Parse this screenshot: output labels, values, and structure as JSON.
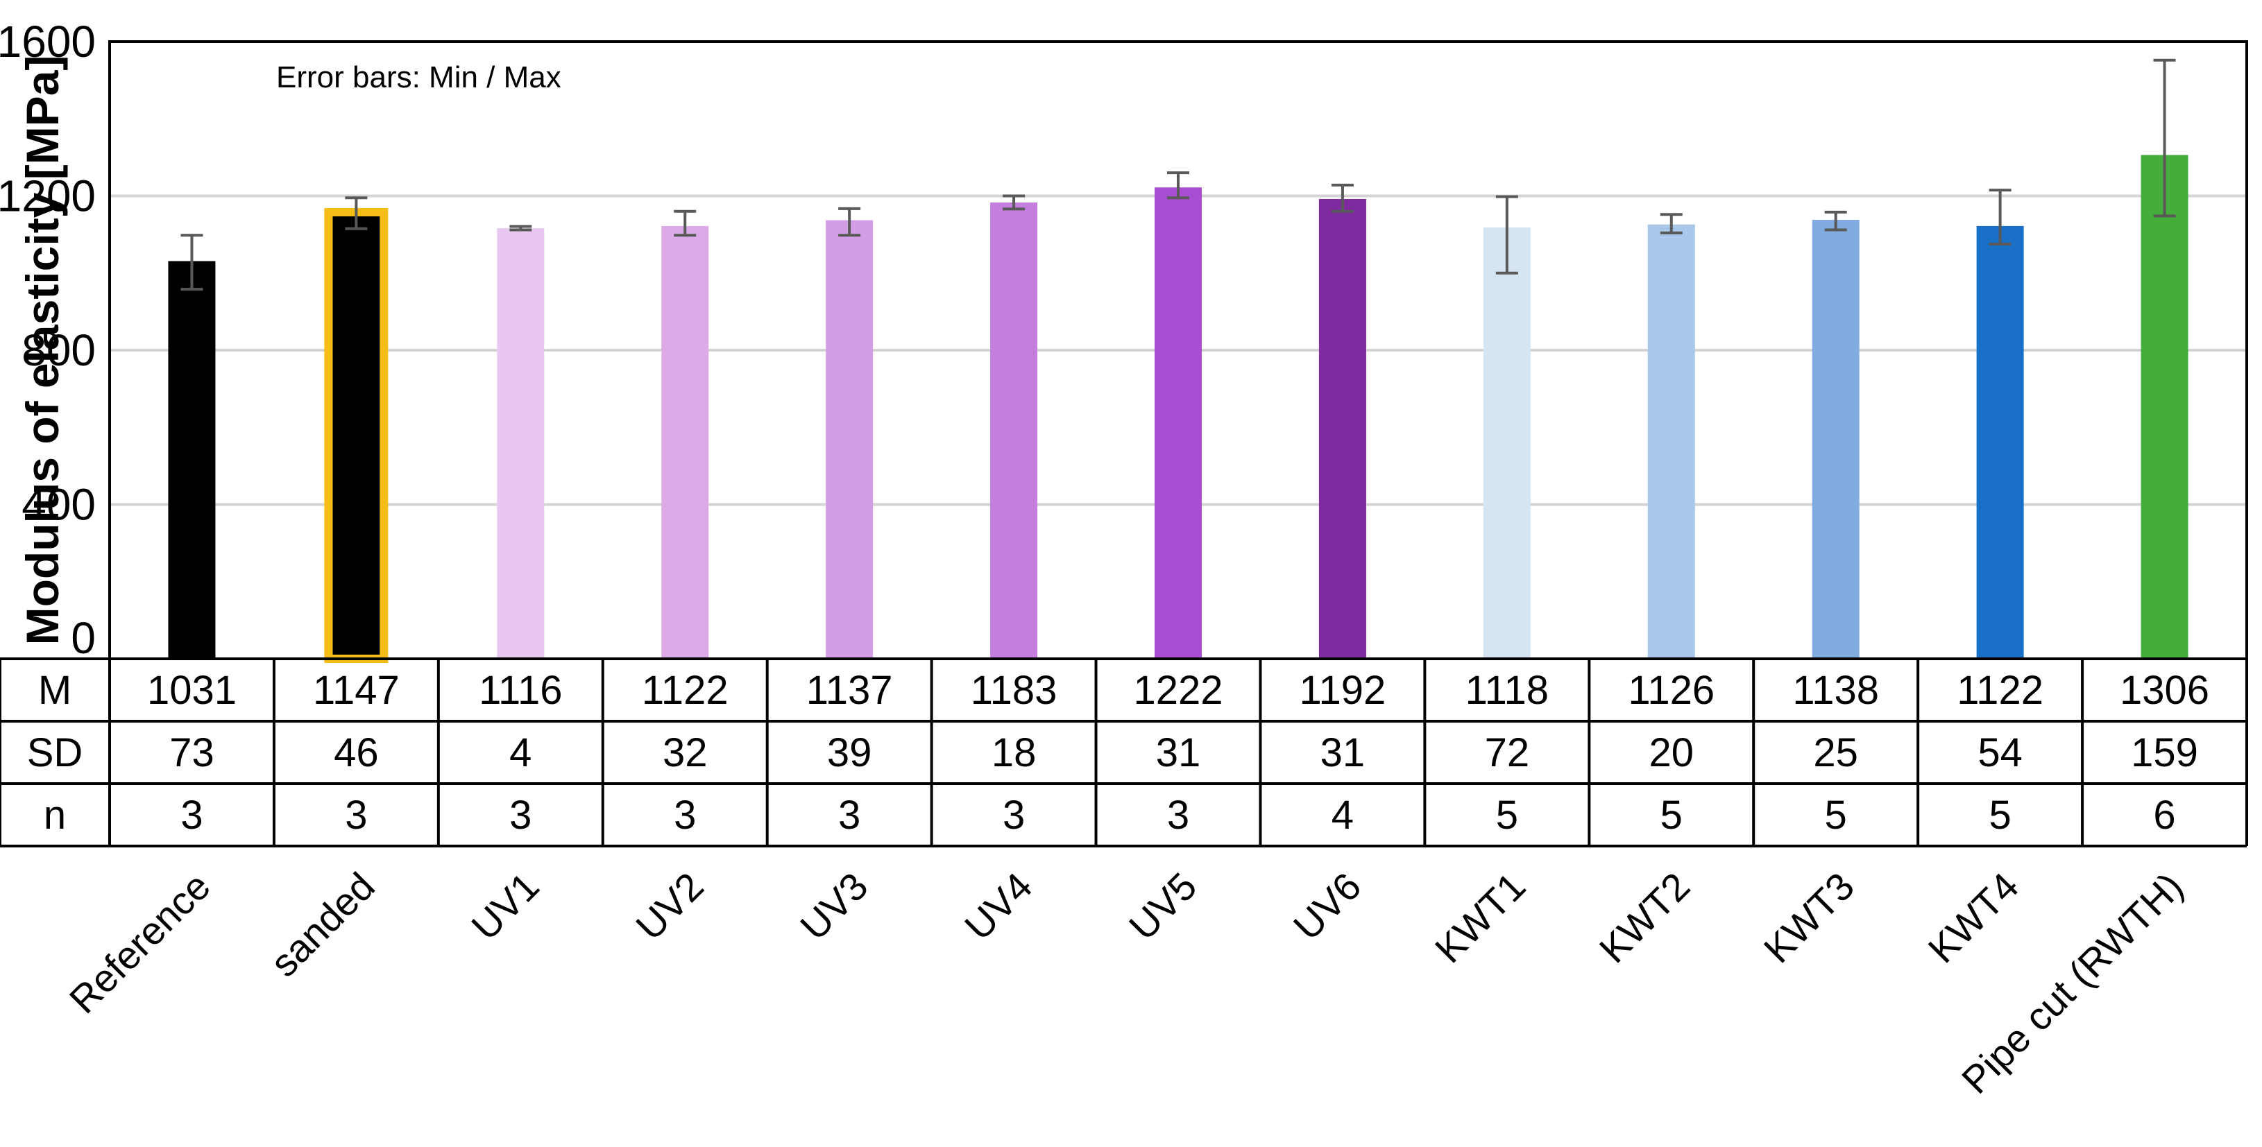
{
  "chart_data": {
    "type": "bar",
    "ylabel": "Modulus of elasticity [MPa]",
    "ylim": [
      0,
      1600
    ],
    "yticks": [
      0,
      400,
      800,
      1200,
      1600
    ],
    "grid": true,
    "annotation": "Error bars: Min / Max",
    "categories": [
      "Reference",
      "sanded",
      "UV1",
      "UV2",
      "UV3",
      "UV4",
      "UV5",
      "UV6",
      "KWT1",
      "KWT2",
      "KWT3",
      "KWT4",
      "Pipe cut (RWTH)"
    ],
    "values": [
      1031,
      1147,
      1116,
      1122,
      1137,
      1183,
      1222,
      1192,
      1118,
      1126,
      1138,
      1122,
      1306
    ],
    "error_min": [
      958,
      1115,
      1112,
      1098,
      1098,
      1166,
      1195,
      1160,
      1000,
      1104,
      1112,
      1075,
      1148
    ],
    "error_max": [
      1098,
      1195,
      1121,
      1160,
      1167,
      1200,
      1260,
      1228,
      1198,
      1152,
      1158,
      1215,
      1552
    ],
    "colors": [
      "#000000",
      "#000000",
      "#e8c8f0",
      "#dcaae6",
      "#d49ee6",
      "#c47ede",
      "#a84ed2",
      "#7e2ba0",
      "#d6e4f4",
      "#a9c7e8",
      "#82ace0",
      "#1a70c6",
      "#45ad3a"
    ],
    "highlight": {
      "index": 1,
      "color": "#f6bd18"
    },
    "table": {
      "row_labels": [
        "M",
        "SD",
        "n"
      ],
      "rows": [
        [
          "1031",
          "1147",
          "1116",
          "1122",
          "1137",
          "1183",
          "1222",
          "1192",
          "1118",
          "1126",
          "1138",
          "1122",
          "1306"
        ],
        [
          "73",
          "46",
          "4",
          "32",
          "39",
          "18",
          "31",
          "31",
          "72",
          "20",
          "25",
          "54",
          "159"
        ],
        [
          "3",
          "3",
          "3",
          "3",
          "3",
          "3",
          "3",
          "4",
          "5",
          "5",
          "5",
          "5",
          "6"
        ]
      ]
    }
  }
}
